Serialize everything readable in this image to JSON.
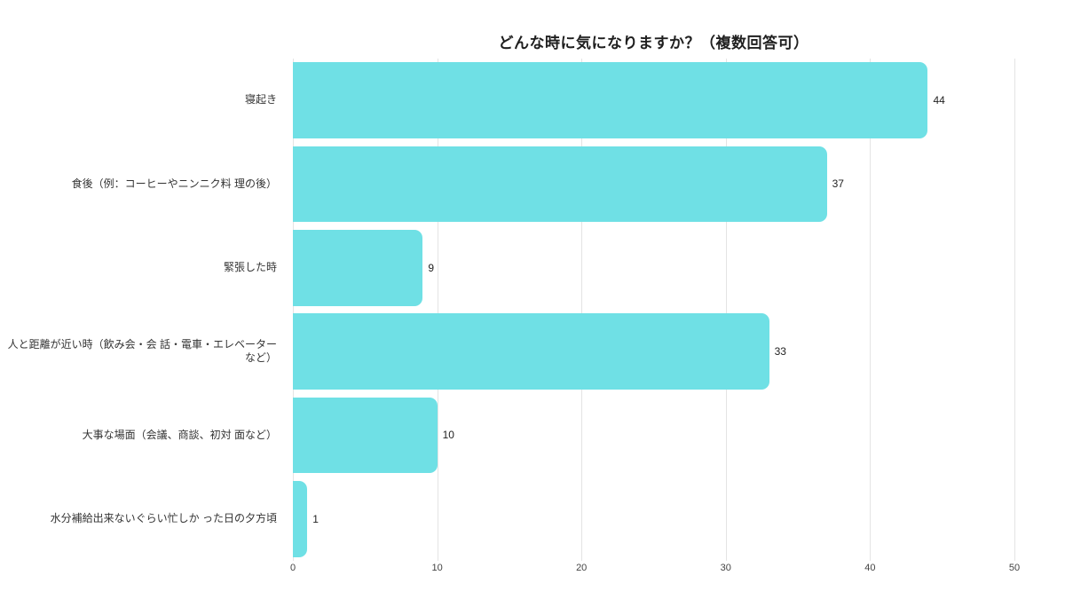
{
  "chart_data": {
    "type": "bar",
    "orientation": "horizontal",
    "title": "どんな時に気になりますか？（複数回答可）",
    "categories": [
      "寝起き",
      "食後（例：コーヒーやニンニク料 理の後）",
      "緊張した時",
      "人と距離が近い時（飲み会・会 話・電車・エレベーターなど）",
      "大事な場面（会議、商談、初対 面など）",
      "水分補給出来ないぐらい忙しか った日の夕方頃"
    ],
    "values": [
      44,
      37,
      9,
      33,
      10,
      1
    ],
    "x_ticks": [
      0,
      10,
      20,
      30,
      40,
      50
    ],
    "xlim": [
      0,
      50
    ],
    "xlabel": "",
    "ylabel": "",
    "grid": true,
    "legend": false
  },
  "colors": {
    "bar": "#6FE0E5",
    "gridline": "#e4e4e4",
    "title_text": "#1f1f1f",
    "label_text": "#333333",
    "value_text": "#222222",
    "tick_text": "#444444",
    "background": "#ffffff"
  }
}
